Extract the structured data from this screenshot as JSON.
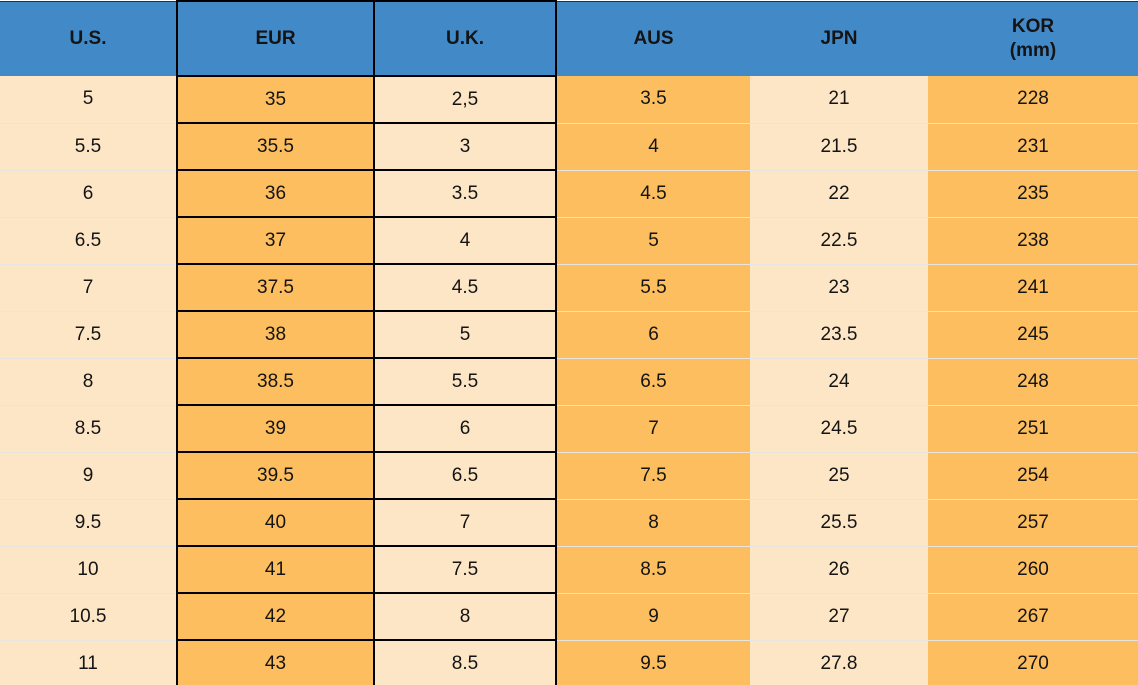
{
  "colors": {
    "header_bg": "#4289C8",
    "orange_cell": "#FCBE5E",
    "cream_cell": "#FDE6C6",
    "border_black": "#000000",
    "row_separator": "#E8E5DE",
    "top_edge_line": "#2F2F2F",
    "text": "#141414"
  },
  "table": {
    "columns": [
      {
        "key": "us",
        "label": "U.S.",
        "sub_label": "",
        "body_style": "cream",
        "bordered": false
      },
      {
        "key": "eur",
        "label": "EUR",
        "sub_label": "",
        "body_style": "orange",
        "bordered": true
      },
      {
        "key": "uk",
        "label": "U.K.",
        "sub_label": "",
        "body_style": "cream",
        "bordered": true
      },
      {
        "key": "aus",
        "label": "AUS",
        "sub_label": "",
        "body_style": "orange",
        "bordered": false
      },
      {
        "key": "jpn",
        "label": "JPN",
        "sub_label": "",
        "body_style": "cream",
        "bordered": false
      },
      {
        "key": "kor",
        "label": "KOR",
        "sub_label": "(mm)",
        "body_style": "orange",
        "bordered": false
      }
    ],
    "rows": [
      [
        "5",
        "35",
        "2,5",
        "3.5",
        "21",
        "228"
      ],
      [
        "5.5",
        "35.5",
        "3",
        "4",
        "21.5",
        "231"
      ],
      [
        "6",
        "36",
        "3.5",
        "4.5",
        "22",
        "235"
      ],
      [
        "6.5",
        "37",
        "4",
        "5",
        "22.5",
        "238"
      ],
      [
        "7",
        "37.5",
        "4.5",
        "5.5",
        "23",
        "241"
      ],
      [
        "7.5",
        "38",
        "5",
        "6",
        "23.5",
        "245"
      ],
      [
        "8",
        "38.5",
        "5.5",
        "6.5",
        "24",
        "248"
      ],
      [
        "8.5",
        "39",
        "6",
        "7",
        "24.5",
        "251"
      ],
      [
        "9",
        "39.5",
        "6.5",
        "7.5",
        "25",
        "254"
      ],
      [
        "9.5",
        "40",
        "7",
        "8",
        "25.5",
        "257"
      ],
      [
        "10",
        "41",
        "7.5",
        "8.5",
        "26",
        "260"
      ],
      [
        "10.5",
        "42",
        "8",
        "9",
        "27",
        "267"
      ],
      [
        "11",
        "43",
        "8.5",
        "9.5",
        "27.8",
        "270"
      ]
    ]
  },
  "chart_data": {
    "type": "table",
    "columns": [
      "U.S.",
      "EUR",
      "U.K.",
      "AUS",
      "JPN",
      "KOR (mm)"
    ],
    "rows": [
      [
        "5",
        "35",
        "2,5",
        "3.5",
        "21",
        "228"
      ],
      [
        "5.5",
        "35.5",
        "3",
        "4",
        "21.5",
        "231"
      ],
      [
        "6",
        "36",
        "3.5",
        "4.5",
        "22",
        "235"
      ],
      [
        "6.5",
        "37",
        "4",
        "5",
        "22.5",
        "238"
      ],
      [
        "7",
        "37.5",
        "4.5",
        "5.5",
        "23",
        "241"
      ],
      [
        "7.5",
        "38",
        "5",
        "6",
        "23.5",
        "245"
      ],
      [
        "8",
        "38.5",
        "5.5",
        "6.5",
        "24",
        "248"
      ],
      [
        "8.5",
        "39",
        "6",
        "7",
        "24.5",
        "251"
      ],
      [
        "9",
        "39.5",
        "6.5",
        "7.5",
        "25",
        "254"
      ],
      [
        "9.5",
        "40",
        "7",
        "8",
        "25.5",
        "257"
      ],
      [
        "10",
        "41",
        "7.5",
        "8.5",
        "26",
        "260"
      ],
      [
        "10.5",
        "42",
        "8",
        "9",
        "27",
        "267"
      ],
      [
        "11",
        "43",
        "8.5",
        "9.5",
        "27.8",
        "270"
      ]
    ]
  }
}
